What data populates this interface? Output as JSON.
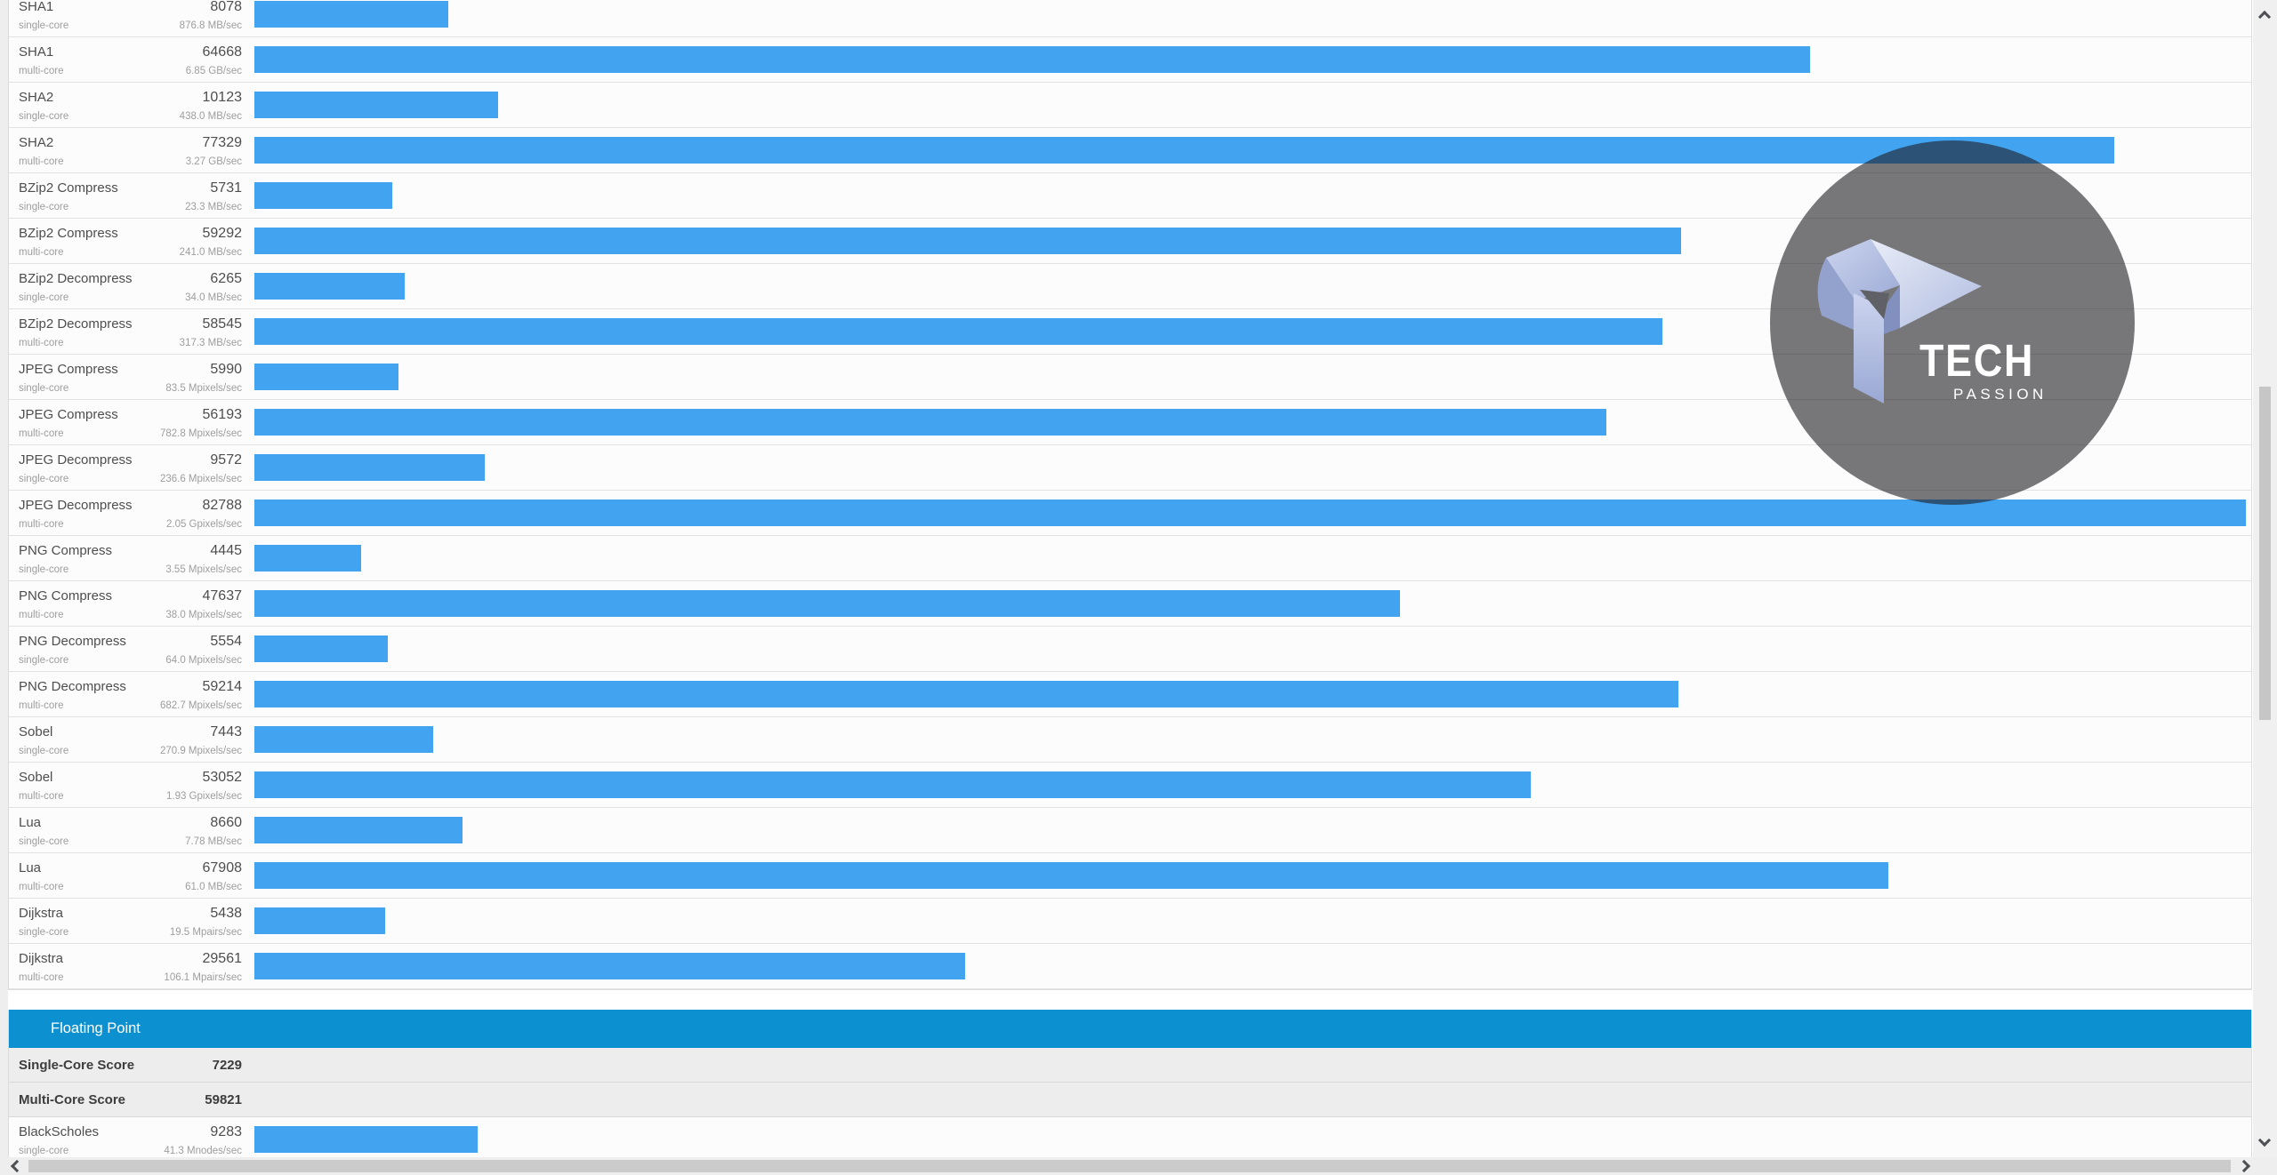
{
  "benchmark": {
    "max_score": 82788,
    "integer_workloads": [
      {
        "name": "SHA1",
        "core": "single-core",
        "score": 8078,
        "throughput": "876.8 MB/sec"
      },
      {
        "name": "SHA1",
        "core": "multi-core",
        "score": 64668,
        "throughput": "6.85 GB/sec"
      },
      {
        "name": "SHA2",
        "core": "single-core",
        "score": 10123,
        "throughput": "438.0 MB/sec"
      },
      {
        "name": "SHA2",
        "core": "multi-core",
        "score": 77329,
        "throughput": "3.27 GB/sec"
      },
      {
        "name": "BZip2 Compress",
        "core": "single-core",
        "score": 5731,
        "throughput": "23.3 MB/sec"
      },
      {
        "name": "BZip2 Compress",
        "core": "multi-core",
        "score": 59292,
        "throughput": "241.0 MB/sec"
      },
      {
        "name": "BZip2 Decompress",
        "core": "single-core",
        "score": 6265,
        "throughput": "34.0 MB/sec"
      },
      {
        "name": "BZip2 Decompress",
        "core": "multi-core",
        "score": 58545,
        "throughput": "317.3 MB/sec"
      },
      {
        "name": "JPEG Compress",
        "core": "single-core",
        "score": 5990,
        "throughput": "83.5 Mpixels/sec"
      },
      {
        "name": "JPEG Compress",
        "core": "multi-core",
        "score": 56193,
        "throughput": "782.8 Mpixels/sec"
      },
      {
        "name": "JPEG Decompress",
        "core": "single-core",
        "score": 9572,
        "throughput": "236.6 Mpixels/sec"
      },
      {
        "name": "JPEG Decompress",
        "core": "multi-core",
        "score": 82788,
        "throughput": "2.05 Gpixels/sec"
      },
      {
        "name": "PNG Compress",
        "core": "single-core",
        "score": 4445,
        "throughput": "3.55 Mpixels/sec"
      },
      {
        "name": "PNG Compress",
        "core": "multi-core",
        "score": 47637,
        "throughput": "38.0 Mpixels/sec"
      },
      {
        "name": "PNG Decompress",
        "core": "single-core",
        "score": 5554,
        "throughput": "64.0 Mpixels/sec"
      },
      {
        "name": "PNG Decompress",
        "core": "multi-core",
        "score": 59214,
        "throughput": "682.7 Mpixels/sec"
      },
      {
        "name": "Sobel",
        "core": "single-core",
        "score": 7443,
        "throughput": "270.9 Mpixels/sec"
      },
      {
        "name": "Sobel",
        "core": "multi-core",
        "score": 53052,
        "throughput": "1.93 Gpixels/sec"
      },
      {
        "name": "Lua",
        "core": "single-core",
        "score": 8660,
        "throughput": "7.78 MB/sec"
      },
      {
        "name": "Lua",
        "core": "multi-core",
        "score": 67908,
        "throughput": "61.0 MB/sec"
      },
      {
        "name": "Dijkstra",
        "core": "single-core",
        "score": 5438,
        "throughput": "19.5 Mpairs/sec"
      },
      {
        "name": "Dijkstra",
        "core": "multi-core",
        "score": 29561,
        "throughput": "106.1 Mpairs/sec"
      }
    ],
    "floating_point": {
      "title": "Floating Point",
      "summary": [
        {
          "label": "Single-Core Score",
          "value": "7229"
        },
        {
          "label": "Multi-Core Score",
          "value": "59821"
        }
      ],
      "workloads": [
        {
          "name": "BlackScholes",
          "core": "single-core",
          "score": 9283,
          "throughput": "41.3 Mnodes/sec"
        }
      ]
    }
  },
  "watermark": {
    "line1": "TECH",
    "line2": "PASSION"
  },
  "icons": {
    "scroll_up": "chevron-up",
    "scroll_down": "chevron-down",
    "scroll_left": "chevron-left",
    "scroll_right": "chevron-right"
  },
  "colors": {
    "bar": "#42a4f0",
    "section_header_bg": "#0d90cf",
    "summary_row_bg": "#ededed",
    "row_bg": "#fcfcfc",
    "row_border": "#e2e2e2",
    "scroll_track": "#f0f0f0",
    "scroll_thumb": "#c6c6c6",
    "watermark_circle": "rgba(30,30,35,0.6)"
  }
}
